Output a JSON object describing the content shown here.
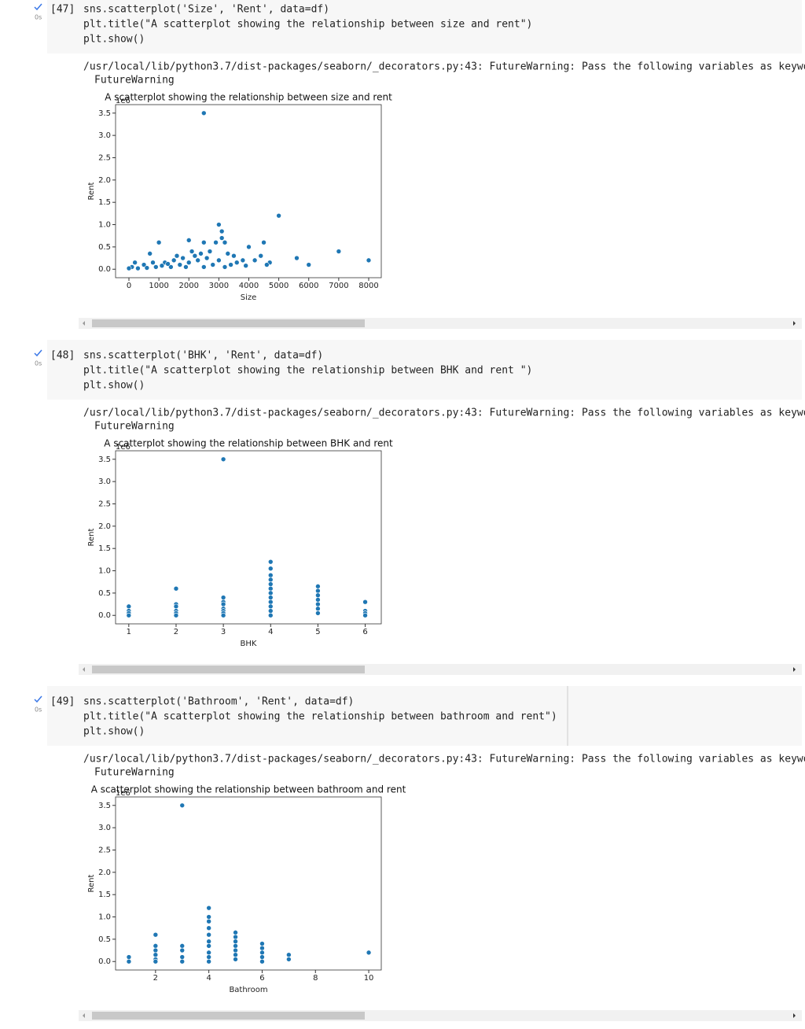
{
  "cells": [
    {
      "exec": "[47]",
      "time": "0s",
      "code": [
        "sns.scatterplot('Size', 'Rent', data=df)",
        "plt.title(\"A scatterplot showing the relationship between size and rent\")",
        "plt.show()"
      ],
      "output": [
        "/usr/local/lib/python3.7/dist-packages/seaborn/_decorators.py:43: FutureWarning: Pass the following variables as keywor",
        "FutureWarning"
      ]
    },
    {
      "exec": "[48]",
      "time": "0s",
      "code": [
        "sns.scatterplot('BHK', 'Rent', data=df)",
        "plt.title(\"A scatterplot showing the relationship between BHK and rent \")",
        "plt.show()"
      ],
      "output": [
        "/usr/local/lib/python3.7/dist-packages/seaborn/_decorators.py:43: FutureWarning: Pass the following variables as keywor",
        "FutureWarning"
      ]
    },
    {
      "exec": "[49]",
      "time": "0s",
      "code": [
        "sns.scatterplot('Bathroom', 'Rent', data=df)",
        "plt.title(\"A scatterplot showing the relationship between bathroom and rent\")",
        "plt.show()"
      ],
      "output": [
        "/usr/local/lib/python3.7/dist-packages/seaborn/_decorators.py:43: FutureWarning: Pass the following variables as keywor",
        "FutureWarning"
      ]
    }
  ],
  "chart_data": [
    {
      "type": "scatter",
      "title": "A scatterplot showing the relationship between size and rent",
      "x_label": "Size",
      "y_label": "Rent",
      "y_offset": "1e6",
      "color": "#1f77b4",
      "x": [
        2500,
        5000,
        3000,
        3100,
        3100,
        1000,
        2000,
        2500,
        2900,
        3200,
        4000,
        4500,
        7000,
        8000,
        6000,
        5600,
        4700,
        4400,
        3500,
        3800,
        3300,
        3600,
        2700,
        2400,
        2200,
        1800,
        1500,
        1200,
        800,
        500,
        200,
        100,
        0,
        300,
        600,
        900,
        1100,
        1400,
        1700,
        2000,
        2300,
        2600,
        2800,
        3000,
        3400,
        3900,
        4200,
        1600,
        2100,
        700,
        1300,
        1900,
        2500,
        3200,
        4600
      ],
      "values": [
        3.5,
        1.2,
        1.0,
        0.85,
        0.7,
        0.6,
        0.65,
        0.6,
        0.6,
        0.6,
        0.5,
        0.6,
        0.4,
        0.2,
        0.1,
        0.25,
        0.15,
        0.3,
        0.3,
        0.2,
        0.35,
        0.15,
        0.4,
        0.35,
        0.3,
        0.25,
        0.2,
        0.15,
        0.15,
        0.1,
        0.15,
        0.05,
        0.02,
        0.02,
        0.03,
        0.05,
        0.08,
        0.05,
        0.1,
        0.15,
        0.2,
        0.25,
        0.1,
        0.2,
        0.1,
        0.08,
        0.2,
        0.3,
        0.4,
        0.35,
        0.12,
        0.05,
        0.05,
        0.05,
        0.1
      ],
      "xlim": [
        -446,
        8420
      ],
      "xticks": [
        0,
        1000,
        2000,
        3000,
        4000,
        5000,
        6000,
        7000,
        8000
      ],
      "ylim": [
        -0.19,
        3.69
      ],
      "yticks": [
        {
          "value": 0,
          "label": "0.0"
        },
        0.5,
        {
          "value": 1,
          "label": "1.0"
        },
        1.5,
        {
          "value": 2,
          "label": "2.0"
        },
        2.5,
        {
          "value": 3,
          "label": "3.0"
        },
        3.5
      ]
    },
    {
      "type": "scatter",
      "title": "A scatterplot showing the relationship between BHK and rent",
      "x_label": "BHK",
      "y_label": "Rent",
      "y_offset": "1e6",
      "color": "#1f77b4",
      "x": [
        1,
        1,
        1,
        1,
        2,
        2,
        2,
        2,
        2,
        2,
        3,
        3,
        3,
        3,
        3,
        3,
        3,
        3,
        4,
        4,
        4,
        4,
        4,
        4,
        4,
        4,
        4,
        4,
        4,
        4,
        5,
        5,
        5,
        5,
        5,
        5,
        5,
        6,
        6,
        6,
        6
      ],
      "values": [
        0.2,
        0.1,
        0.05,
        0.0,
        0.6,
        0.25,
        0.2,
        0.1,
        0.05,
        0.0,
        3.5,
        0.4,
        0.3,
        0.25,
        0.15,
        0.1,
        0.05,
        0.0,
        1.2,
        1.05,
        0.9,
        0.8,
        0.7,
        0.6,
        0.5,
        0.4,
        0.3,
        0.2,
        0.1,
        0.0,
        0.65,
        0.55,
        0.45,
        0.35,
        0.25,
        0.15,
        0.05,
        0.3,
        0.1,
        0.05,
        0.0
      ],
      "xlim": [
        0.72,
        6.34
      ],
      "xticks": [
        1,
        2,
        3,
        4,
        5,
        6
      ],
      "ylim": [
        -0.19,
        3.69
      ],
      "yticks": [
        {
          "value": 0,
          "label": "0.0"
        },
        0.5,
        {
          "value": 1,
          "label": "1.0"
        },
        1.5,
        {
          "value": 2,
          "label": "2.0"
        },
        2.5,
        {
          "value": 3,
          "label": "3.0"
        },
        3.5
      ]
    },
    {
      "type": "scatter",
      "title": "A scatterplot showing the relationship between bathroom and rent",
      "x_label": "Bathroom",
      "y_label": "Rent",
      "y_offset": "1e6",
      "color": "#1f77b4",
      "x": [
        1,
        1,
        2,
        2,
        2,
        2,
        2,
        2,
        3,
        3,
        3,
        3,
        3,
        4,
        4,
        4,
        4,
        4,
        4,
        4,
        4,
        4,
        4,
        5,
        5,
        5,
        5,
        5,
        5,
        5,
        6,
        6,
        6,
        6,
        6,
        7,
        7,
        10
      ],
      "values": [
        0.1,
        0.0,
        0.6,
        0.35,
        0.25,
        0.15,
        0.05,
        0.0,
        3.5,
        0.35,
        0.25,
        0.1,
        0.0,
        1.2,
        1.0,
        0.9,
        0.75,
        0.6,
        0.45,
        0.35,
        0.2,
        0.1,
        0.0,
        0.65,
        0.55,
        0.45,
        0.35,
        0.25,
        0.15,
        0.05,
        0.4,
        0.3,
        0.2,
        0.1,
        0.0,
        0.15,
        0.05,
        0.2
      ],
      "xlim": [
        0.5,
        10.47
      ],
      "xticks": [
        2,
        4,
        6,
        8,
        10
      ],
      "ylim": [
        -0.19,
        3.69
      ],
      "yticks": [
        {
          "value": 0,
          "label": "0.0"
        },
        0.5,
        {
          "value": 1,
          "label": "1.0"
        },
        1.5,
        {
          "value": 2,
          "label": "2.0"
        },
        2.5,
        {
          "value": 3,
          "label": "3.0"
        },
        3.5
      ]
    }
  ]
}
